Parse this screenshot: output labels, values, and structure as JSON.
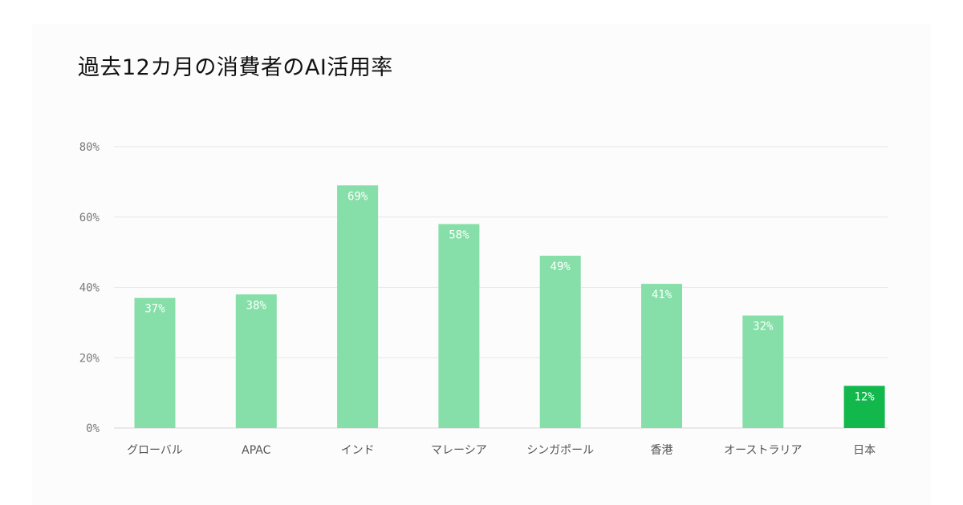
{
  "title": "過去12カ月の消費者のAI活用率",
  "colors": {
    "bar": "#86dfa8",
    "highlight": "#12b84c",
    "grid": "#e6e6e6"
  },
  "chart_data": {
    "type": "bar",
    "title": "過去12カ月の消費者のAI活用率",
    "xlabel": "",
    "ylabel": "",
    "ylim": [
      0,
      80
    ],
    "yticks": [
      "0%",
      "20%",
      "40%",
      "60%",
      "80%"
    ],
    "ytick_values": [
      0,
      20,
      40,
      60,
      80
    ],
    "categories": [
      "グローバル",
      "APAC",
      "インド",
      "マレーシア",
      "シンガポール",
      "香港",
      "オーストラリア",
      "日本"
    ],
    "values": [
      37,
      38,
      69,
      58,
      49,
      41,
      32,
      12
    ],
    "data_labels": [
      "37%",
      "38%",
      "69%",
      "58%",
      "49%",
      "41%",
      "32%",
      "12%"
    ],
    "highlighted": [
      "日本"
    ],
    "grid": true,
    "legend": "none"
  }
}
